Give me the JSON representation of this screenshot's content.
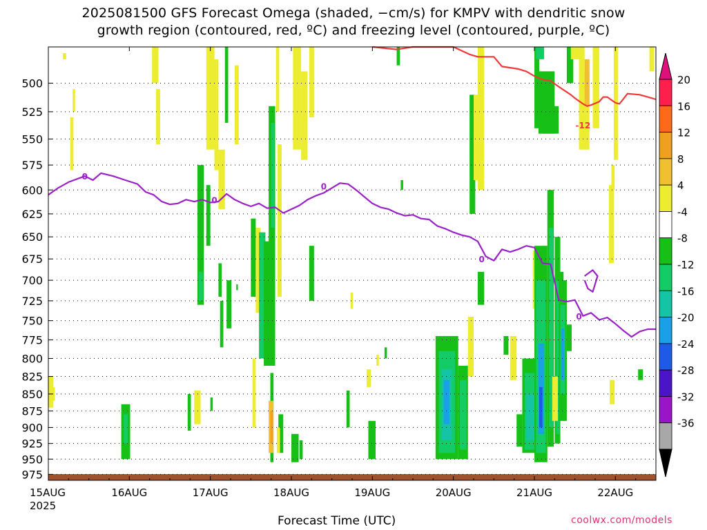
{
  "title": {
    "line1": "2025081500 GFS Forecast Omega (shaded, −cm/s) for KMPV with dendritic snow",
    "line2": "growth region (contoured, red, ºC) and freezing level (contoured, purple, ºC)"
  },
  "footer": {
    "xlabel": "Forecast Time (UTC)",
    "credit": "coolwx.com/models"
  },
  "chart_data": {
    "type": "heatmap",
    "x_label": "Forecast Time (UTC)",
    "x_ticks": [
      {
        "label": "15AUG",
        "sub": "2025",
        "day": 0
      },
      {
        "label": "16AUG",
        "day": 1
      },
      {
        "label": "17AUG",
        "day": 2
      },
      {
        "label": "18AUG",
        "day": 3
      },
      {
        "label": "19AUG",
        "day": 4
      },
      {
        "label": "20AUG",
        "day": 5
      },
      {
        "label": "21AUG",
        "day": 6
      },
      {
        "label": "22AUG",
        "day": 7
      }
    ],
    "x_range_days": [
      0,
      7.5
    ],
    "y_ticks": [
      500,
      525,
      550,
      575,
      600,
      625,
      650,
      675,
      700,
      725,
      750,
      775,
      800,
      825,
      850,
      875,
      900,
      925,
      950,
      975
    ],
    "y_range_hpa": [
      470,
      985
    ],
    "y_log_scale": true,
    "grid": "dotted",
    "colorbar": {
      "labels": [
        "20",
        "16",
        "12",
        "8",
        "4",
        "-4",
        "-8",
        "-12",
        "-16",
        "-20",
        "-24",
        "-28",
        "-32",
        "-36"
      ],
      "colors": [
        "#ff1f4d",
        "#ff6a1a",
        "#f0a020",
        "#f0c030",
        "#ecec30",
        "#ffffff",
        "#16c016",
        "#14cc66",
        "#14c4a4",
        "#1aa0e6",
        "#1e5ae6",
        "#4a14c8",
        "#9a14c8",
        "#a8a8a8"
      ],
      "top_arrow_color": "#e0107a",
      "bottom_arrow_color": "#000000"
    },
    "freezing_level": {
      "color": "#9a20c8",
      "label": "0",
      "points": [
        [
          0,
          605
        ],
        [
          0.12,
          598
        ],
        [
          0.25,
          592
        ],
        [
          0.45,
          586
        ],
        [
          0.55,
          590
        ],
        [
          0.65,
          583
        ],
        [
          0.8,
          586
        ],
        [
          0.95,
          590
        ],
        [
          1.1,
          594
        ],
        [
          1.2,
          602
        ],
        [
          1.3,
          605
        ],
        [
          1.4,
          612
        ],
        [
          1.5,
          615
        ],
        [
          1.6,
          614
        ],
        [
          1.7,
          610
        ],
        [
          1.8,
          612
        ],
        [
          1.9,
          610
        ],
        [
          2.0,
          613
        ],
        [
          2.1,
          612
        ],
        [
          2.2,
          604
        ],
        [
          2.3,
          610
        ],
        [
          2.4,
          614
        ],
        [
          2.5,
          617
        ],
        [
          2.6,
          614
        ],
        [
          2.7,
          619
        ],
        [
          2.8,
          618
        ],
        [
          2.9,
          624
        ],
        [
          3.0,
          620
        ],
        [
          3.1,
          616
        ],
        [
          3.2,
          610
        ],
        [
          3.3,
          606
        ],
        [
          3.4,
          603
        ],
        [
          3.5,
          598
        ],
        [
          3.6,
          593
        ],
        [
          3.7,
          594
        ],
        [
          3.8,
          600
        ],
        [
          3.9,
          607
        ],
        [
          4.0,
          614
        ],
        [
          4.1,
          618
        ],
        [
          4.2,
          620
        ],
        [
          4.3,
          624
        ],
        [
          4.4,
          627
        ],
        [
          4.5,
          626
        ],
        [
          4.6,
          630
        ],
        [
          4.7,
          631
        ],
        [
          4.8,
          638
        ],
        [
          4.9,
          641
        ],
        [
          5.0,
          645
        ],
        [
          5.1,
          648
        ],
        [
          5.2,
          650
        ],
        [
          5.3,
          655
        ],
        [
          5.4,
          672
        ],
        [
          5.5,
          677
        ],
        [
          5.6,
          664
        ],
        [
          5.7,
          667
        ],
        [
          5.8,
          664
        ],
        [
          5.9,
          660
        ],
        [
          6.0,
          662
        ],
        [
          6.1,
          680
        ],
        [
          6.2,
          681
        ],
        [
          6.3,
          724
        ],
        [
          6.4,
          726
        ],
        [
          6.5,
          724
        ],
        [
          6.6,
          744
        ],
        [
          6.7,
          740
        ],
        [
          6.8,
          749
        ],
        [
          6.9,
          746
        ],
        [
          7.0,
          754
        ],
        [
          7.1,
          763
        ],
        [
          7.2,
          771
        ],
        [
          7.3,
          764
        ],
        [
          7.4,
          761
        ],
        [
          7.5,
          761
        ]
      ],
      "loop": [
        [
          6.62,
          695
        ],
        [
          6.72,
          688
        ],
        [
          6.78,
          695
        ],
        [
          6.72,
          714
        ],
        [
          6.66,
          710
        ],
        [
          6.62,
          700
        ]
      ]
    },
    "dgz_minus12": {
      "color": "#f03838",
      "label": "-12",
      "points": [
        [
          4.0,
          470
        ],
        [
          4.3,
          472
        ],
        [
          4.5,
          468
        ],
        [
          5.0,
          470
        ],
        [
          5.2,
          476
        ],
        [
          5.3,
          478
        ],
        [
          5.5,
          478
        ],
        [
          5.6,
          486
        ],
        [
          5.8,
          488
        ],
        [
          5.9,
          490
        ],
        [
          6.0,
          494
        ],
        [
          6.1,
          497
        ],
        [
          6.2,
          498
        ],
        [
          6.3,
          503
        ],
        [
          6.45,
          510
        ],
        [
          6.5,
          513
        ],
        [
          6.6,
          518
        ],
        [
          6.65,
          520
        ],
        [
          6.7,
          519
        ],
        [
          6.8,
          516
        ],
        [
          6.85,
          512
        ],
        [
          6.9,
          512
        ],
        [
          7.0,
          517
        ],
        [
          7.05,
          518
        ],
        [
          7.15,
          509
        ],
        [
          7.3,
          510
        ],
        [
          7.4,
          512
        ],
        [
          7.5,
          514
        ]
      ]
    },
    "omega_cells": [
      {
        "d0": 0.18,
        "d1": 0.22,
        "p0": 475,
        "p1": 480,
        "v": 5
      },
      {
        "d0": 0.3,
        "d1": 0.33,
        "p0": 505,
        "p1": 525,
        "v": 5
      },
      {
        "d0": 0.27,
        "d1": 0.31,
        "p0": 530,
        "p1": 580,
        "v": 5
      },
      {
        "d0": 1.28,
        "d1": 1.36,
        "p0": 470,
        "p1": 500,
        "v": 5
      },
      {
        "d0": 1.33,
        "d1": 1.38,
        "p0": 505,
        "p1": 555,
        "v": 5
      },
      {
        "d0": 0.0,
        "d1": 0.06,
        "p0": 825,
        "p1": 870,
        "v": 5
      },
      {
        "d0": 0.03,
        "d1": 0.08,
        "p0": 840,
        "p1": 860,
        "v": 5
      },
      {
        "d0": 0.9,
        "d1": 1.01,
        "p0": 865,
        "p1": 950,
        "v": -6
      },
      {
        "d0": 0.93,
        "d1": 0.98,
        "p0": 880,
        "p1": 925,
        "v": -10
      },
      {
        "d0": 1.95,
        "d1": 2.05,
        "p0": 470,
        "p1": 560,
        "v": 5
      },
      {
        "d0": 2.05,
        "d1": 2.1,
        "p0": 480,
        "p1": 580,
        "v": 5
      },
      {
        "d0": 2.1,
        "d1": 2.18,
        "p0": 560,
        "p1": 620,
        "v": 5
      },
      {
        "d0": 2.18,
        "d1": 2.22,
        "p0": 470,
        "p1": 535,
        "v": -6
      },
      {
        "d0": 2.3,
        "d1": 2.35,
        "p0": 485,
        "p1": 555,
        "v": 5
      },
      {
        "d0": 1.84,
        "d1": 1.92,
        "p0": 575,
        "p1": 730,
        "v": -6
      },
      {
        "d0": 1.86,
        "d1": 1.91,
        "p0": 690,
        "p1": 725,
        "v": -10
      },
      {
        "d0": 1.95,
        "d1": 2.0,
        "p0": 595,
        "p1": 660,
        "v": -6
      },
      {
        "d0": 2.1,
        "d1": 2.14,
        "p0": 680,
        "p1": 720,
        "v": -6
      },
      {
        "d0": 2.12,
        "d1": 2.16,
        "p0": 725,
        "p1": 785,
        "v": -6
      },
      {
        "d0": 2.2,
        "d1": 2.26,
        "p0": 700,
        "p1": 760,
        "v": -6
      },
      {
        "d0": 2.32,
        "d1": 2.34,
        "p0": 705,
        "p1": 712,
        "v": -6
      },
      {
        "d0": 1.8,
        "d1": 1.88,
        "p0": 845,
        "p1": 895,
        "v": 5
      },
      {
        "d0": 1.72,
        "d1": 1.76,
        "p0": 850,
        "p1": 905,
        "v": -6
      },
      {
        "d0": 2.0,
        "d1": 2.03,
        "p0": 855,
        "p1": 875,
        "v": -6
      },
      {
        "d0": 2.5,
        "d1": 2.56,
        "p0": 630,
        "p1": 720,
        "v": -6
      },
      {
        "d0": 2.52,
        "d1": 2.56,
        "p0": 800,
        "p1": 900,
        "v": 5
      },
      {
        "d0": 2.56,
        "d1": 2.62,
        "p0": 640,
        "p1": 740,
        "v": 5
      },
      {
        "d0": 2.6,
        "d1": 2.68,
        "p0": 645,
        "p1": 800,
        "v": -10
      },
      {
        "d0": 2.66,
        "d1": 2.74,
        "p0": 655,
        "p1": 810,
        "v": -6
      },
      {
        "d0": 2.72,
        "d1": 2.8,
        "p0": 520,
        "p1": 700,
        "v": -6
      },
      {
        "d0": 2.75,
        "d1": 2.79,
        "p0": 535,
        "p1": 640,
        "v": -10
      },
      {
        "d0": 2.74,
        "d1": 2.8,
        "p0": 700,
        "p1": 810,
        "v": -6
      },
      {
        "d0": 2.81,
        "d1": 2.85,
        "p0": 470,
        "p1": 525,
        "v": 5
      },
      {
        "d0": 2.83,
        "d1": 2.88,
        "p0": 555,
        "p1": 720,
        "v": 5
      },
      {
        "d0": 2.74,
        "d1": 2.78,
        "p0": 820,
        "p1": 955,
        "v": -6
      },
      {
        "d0": 2.72,
        "d1": 2.78,
        "p0": 860,
        "p1": 940,
        "v": 10
      },
      {
        "d0": 2.74,
        "d1": 2.77,
        "p0": 875,
        "p1": 925,
        "v": 12
      },
      {
        "d0": 2.84,
        "d1": 2.9,
        "p0": 880,
        "p1": 940,
        "v": -6
      },
      {
        "d0": 2.82,
        "d1": 2.86,
        "p0": 900,
        "p1": 940,
        "v": 5
      },
      {
        "d0": 3.0,
        "d1": 3.09,
        "p0": 910,
        "p1": 955,
        "v": -6
      },
      {
        "d0": 3.1,
        "d1": 3.14,
        "p0": 920,
        "p1": 950,
        "v": -6
      },
      {
        "d0": 3.02,
        "d1": 3.12,
        "p0": 470,
        "p1": 560,
        "v": 5
      },
      {
        "d0": 3.12,
        "d1": 3.2,
        "p0": 490,
        "p1": 570,
        "v": 5
      },
      {
        "d0": 3.22,
        "d1": 3.28,
        "p0": 470,
        "p1": 530,
        "v": 5
      },
      {
        "d0": 3.22,
        "d1": 3.28,
        "p0": 660,
        "p1": 725,
        "v": -6
      },
      {
        "d0": 4.3,
        "d1": 4.34,
        "p0": 470,
        "p1": 485,
        "v": -6
      },
      {
        "d0": 3.95,
        "d1": 4.04,
        "p0": 890,
        "p1": 950,
        "v": -6
      },
      {
        "d0": 3.73,
        "d1": 3.76,
        "p0": 715,
        "p1": 735,
        "v": 5
      },
      {
        "d0": 4.05,
        "d1": 4.08,
        "p0": 795,
        "p1": 810,
        "v": 5
      },
      {
        "d0": 4.15,
        "d1": 4.18,
        "p0": 785,
        "p1": 800,
        "v": -6
      },
      {
        "d0": 3.93,
        "d1": 3.98,
        "p0": 815,
        "p1": 840,
        "v": 5
      },
      {
        "d0": 3.68,
        "d1": 3.72,
        "p0": 845,
        "p1": 900,
        "v": -6
      },
      {
        "d0": 4.35,
        "d1": 4.38,
        "p0": 590,
        "p1": 600,
        "v": -6
      },
      {
        "d0": 4.78,
        "d1": 5.06,
        "p0": 770,
        "p1": 950,
        "v": -6
      },
      {
        "d0": 4.82,
        "d1": 5.02,
        "p0": 790,
        "p1": 940,
        "v": -10
      },
      {
        "d0": 4.86,
        "d1": 4.98,
        "p0": 815,
        "p1": 920,
        "v": -14
      },
      {
        "d0": 4.88,
        "d1": 4.95,
        "p0": 830,
        "p1": 895,
        "v": -17
      },
      {
        "d0": 5.06,
        "d1": 5.18,
        "p0": 810,
        "p1": 950,
        "v": -6
      },
      {
        "d0": 5.08,
        "d1": 5.16,
        "p0": 830,
        "p1": 935,
        "v": -10
      },
      {
        "d0": 5.18,
        "d1": 5.25,
        "p0": 745,
        "p1": 825,
        "v": 5
      },
      {
        "d0": 5.2,
        "d1": 5.27,
        "p0": 510,
        "p1": 625,
        "v": -6
      },
      {
        "d0": 5.25,
        "d1": 5.32,
        "p0": 510,
        "p1": 590,
        "v": 5
      },
      {
        "d0": 5.3,
        "d1": 5.38,
        "p0": 470,
        "p1": 600,
        "v": 5
      },
      {
        "d0": 5.3,
        "d1": 5.38,
        "p0": 690,
        "p1": 730,
        "v": -6
      },
      {
        "d0": 5.62,
        "d1": 5.68,
        "p0": 770,
        "p1": 795,
        "v": -6
      },
      {
        "d0": 5.7,
        "d1": 5.78,
        "p0": 770,
        "p1": 830,
        "v": 5
      },
      {
        "d0": 5.98,
        "d1": 6.02,
        "p0": 665,
        "p1": 735,
        "v": 5
      },
      {
        "d0": 6.0,
        "d1": 6.06,
        "p0": 470,
        "p1": 540,
        "v": -6
      },
      {
        "d0": 6.02,
        "d1": 6.12,
        "p0": 470,
        "p1": 480,
        "v": -10
      },
      {
        "d0": 6.05,
        "d1": 6.25,
        "p0": 490,
        "p1": 545,
        "v": -6
      },
      {
        "d0": 6.1,
        "d1": 6.3,
        "p0": 520,
        "p1": 545,
        "v": -6
      },
      {
        "d0": 5.85,
        "d1": 6.0,
        "p0": 800,
        "p1": 940,
        "v": -6
      },
      {
        "d0": 5.88,
        "d1": 6.02,
        "p0": 820,
        "p1": 935,
        "v": -10
      },
      {
        "d0": 5.9,
        "d1": 6.0,
        "p0": 850,
        "p1": 920,
        "v": -14
      },
      {
        "d0": 5.78,
        "d1": 5.85,
        "p0": 880,
        "p1": 930,
        "v": -6
      },
      {
        "d0": 6.0,
        "d1": 6.16,
        "p0": 660,
        "p1": 955,
        "v": -6
      },
      {
        "d0": 6.02,
        "d1": 6.14,
        "p0": 700,
        "p1": 940,
        "v": -10
      },
      {
        "d0": 6.05,
        "d1": 6.12,
        "p0": 780,
        "p1": 910,
        "v": -17
      },
      {
        "d0": 6.06,
        "d1": 6.1,
        "p0": 840,
        "p1": 900,
        "v": -22
      },
      {
        "d0": 6.16,
        "d1": 6.24,
        "p0": 600,
        "p1": 930,
        "v": -6
      },
      {
        "d0": 6.18,
        "d1": 6.23,
        "p0": 640,
        "p1": 900,
        "v": -10
      },
      {
        "d0": 6.25,
        "d1": 6.32,
        "p0": 650,
        "p1": 925,
        "v": -6
      },
      {
        "d0": 6.27,
        "d1": 6.31,
        "p0": 700,
        "p1": 910,
        "v": -10
      },
      {
        "d0": 6.3,
        "d1": 6.4,
        "p0": 700,
        "p1": 890,
        "v": -6
      },
      {
        "d0": 6.32,
        "d1": 6.38,
        "p0": 730,
        "p1": 850,
        "v": -10
      },
      {
        "d0": 6.33,
        "d1": 6.37,
        "p0": 760,
        "p1": 830,
        "v": -17
      },
      {
        "d0": 6.22,
        "d1": 6.29,
        "p0": 825,
        "p1": 890,
        "v": 5
      },
      {
        "d0": 6.4,
        "d1": 6.48,
        "p0": 470,
        "p1": 500,
        "v": -6
      },
      {
        "d0": 6.45,
        "d1": 6.55,
        "p0": 470,
        "p1": 480,
        "v": 5
      },
      {
        "d0": 6.55,
        "d1": 6.62,
        "p0": 470,
        "p1": 560,
        "v": 5
      },
      {
        "d0": 6.6,
        "d1": 6.68,
        "p0": 490,
        "p1": 560,
        "v": 5
      },
      {
        "d0": 6.62,
        "d1": 6.68,
        "p0": 480,
        "p1": 520,
        "v": 10
      },
      {
        "d0": 6.72,
        "d1": 6.8,
        "p0": 470,
        "p1": 540,
        "v": 5
      },
      {
        "d0": 6.92,
        "d1": 6.98,
        "p0": 595,
        "p1": 680,
        "v": 5
      },
      {
        "d0": 6.95,
        "d1": 6.99,
        "p0": 575,
        "p1": 600,
        "v": 5
      },
      {
        "d0": 6.98,
        "d1": 7.03,
        "p0": 470,
        "p1": 570,
        "v": 5
      },
      {
        "d0": 7.42,
        "d1": 7.48,
        "p0": 470,
        "p1": 490,
        "v": 5
      },
      {
        "d0": 7.28,
        "d1": 7.34,
        "p0": 815,
        "p1": 830,
        "v": -6
      },
      {
        "d0": 6.93,
        "d1": 6.99,
        "p0": 830,
        "p1": 865,
        "v": 5
      },
      {
        "d0": 6.4,
        "d1": 6.46,
        "p0": 755,
        "p1": 790,
        "v": -6
      },
      {
        "d0": 6.32,
        "d1": 6.36,
        "p0": 690,
        "p1": 730,
        "v": -6
      }
    ],
    "surface_color": "#a0522d"
  }
}
